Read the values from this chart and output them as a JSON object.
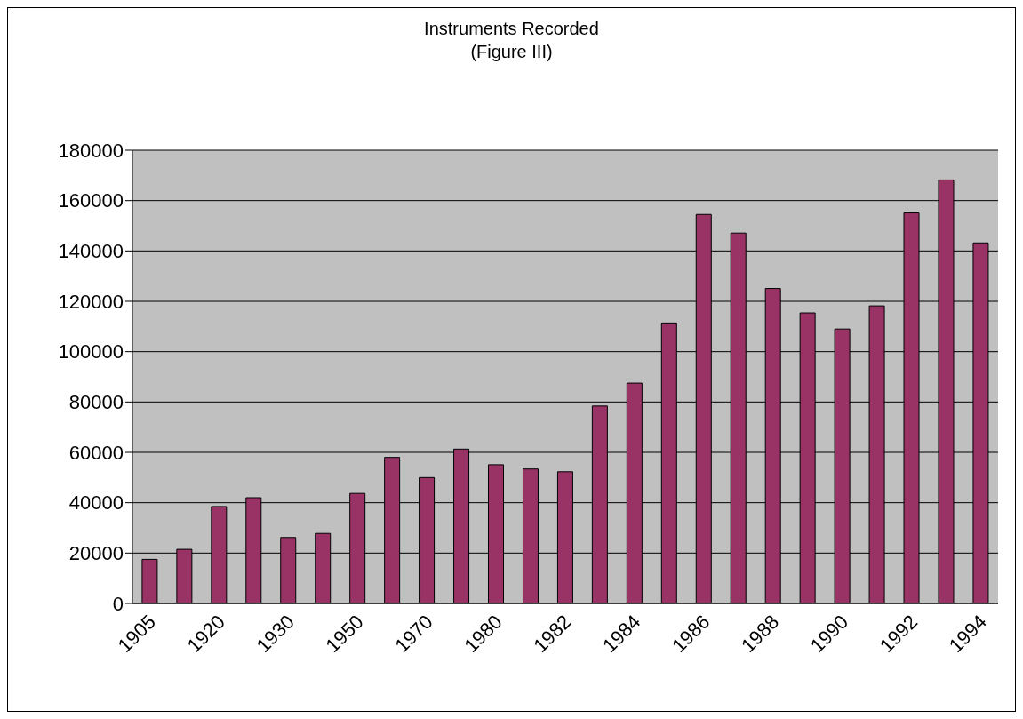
{
  "chart_data": {
    "type": "bar",
    "title": "Instruments Recorded",
    "subtitle": "(Figure III)",
    "categories": [
      "1905",
      null,
      "1920",
      null,
      "1930",
      null,
      "1950",
      null,
      "1970",
      null,
      "1980",
      null,
      "1982",
      null,
      "1984",
      null,
      "1986",
      null,
      "1988",
      null,
      "1990",
      null,
      "1992",
      null,
      "1994"
    ],
    "values": [
      17500,
      21500,
      38500,
      42000,
      26200,
      27800,
      43700,
      58000,
      50000,
      61300,
      55100,
      53400,
      52300,
      78400,
      87500,
      111400,
      154500,
      147100,
      125100,
      115400,
      109000,
      118200,
      155100,
      168200,
      143200
    ],
    "color": "#993366",
    "ylim": [
      0,
      180000
    ],
    "yticks": [
      0,
      20000,
      40000,
      60000,
      80000,
      100000,
      120000,
      140000,
      160000,
      180000
    ],
    "grid": "y"
  }
}
